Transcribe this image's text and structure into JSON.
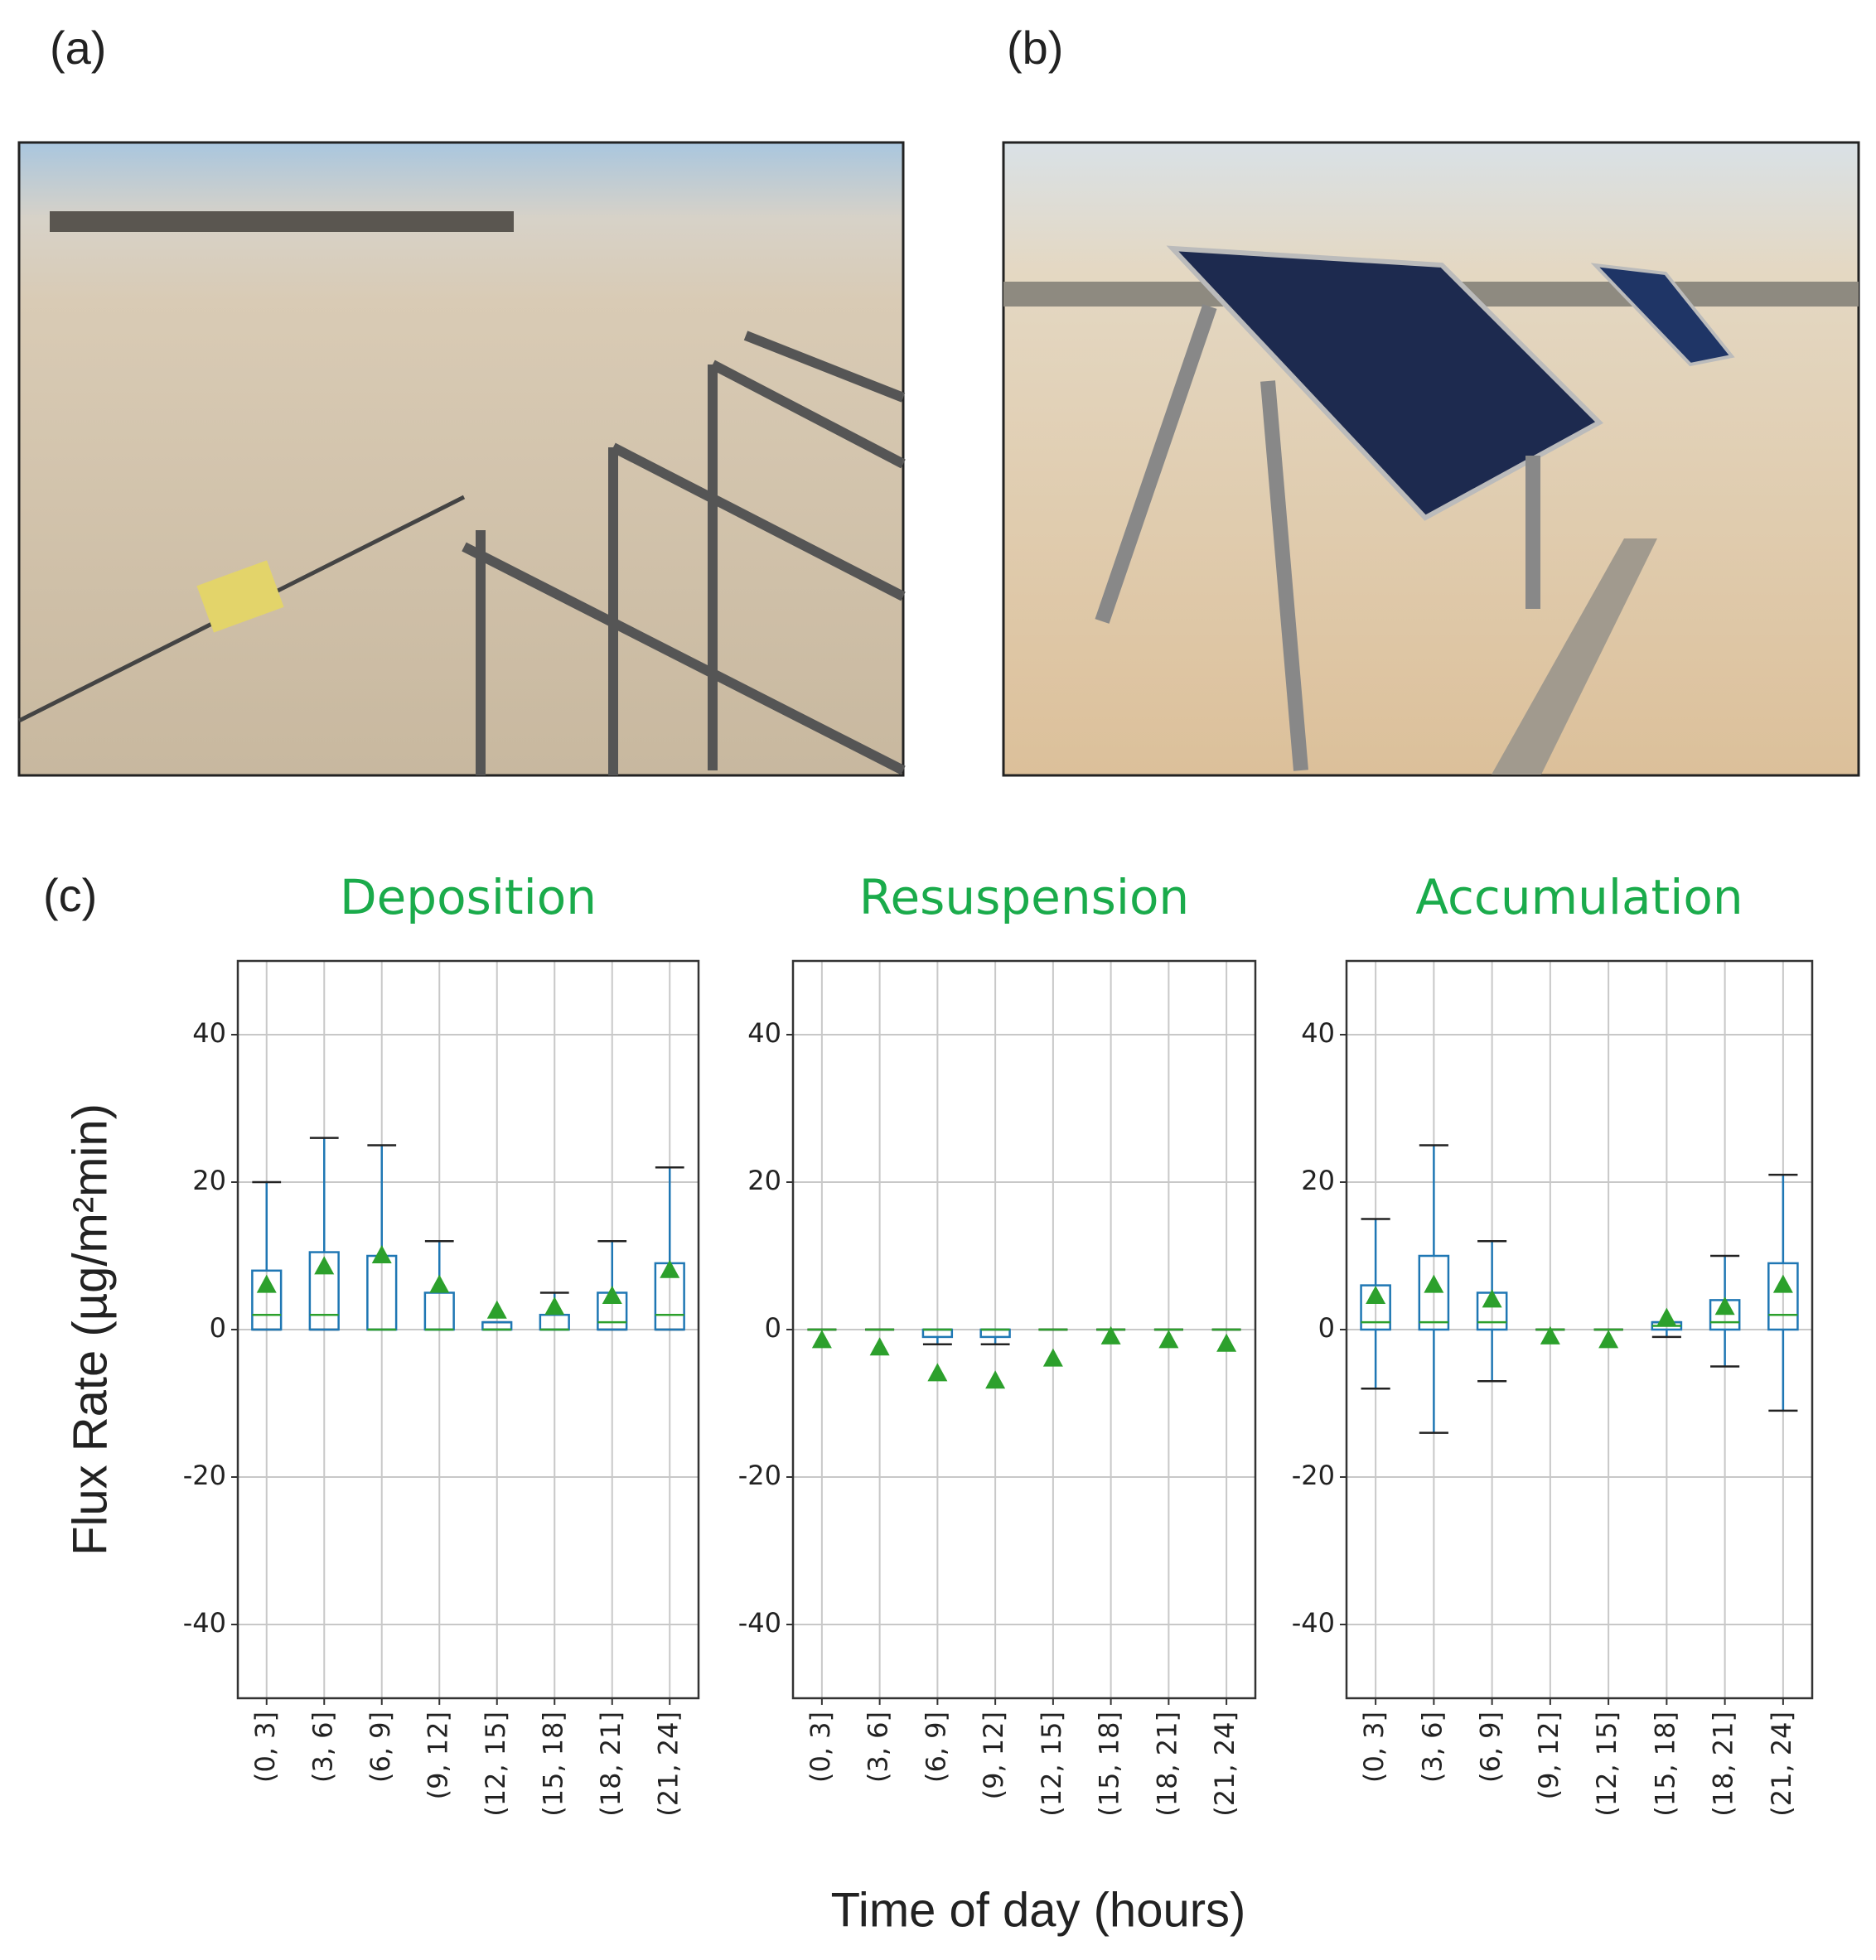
{
  "panel_labels": [
    "(a)",
    "(b)",
    "(c)"
  ],
  "y_label": "Flux Rate (µg/m²min)",
  "x_label": "Time of day (hours)",
  "chart_data": [
    {
      "type": "box",
      "title": "Deposition",
      "categories": [
        "(0, 3]",
        "(3, 6]",
        "(6, 9]",
        "(9, 12]",
        "(12, 15]",
        "(15, 18]",
        "(18, 21]",
        "(21, 24]"
      ],
      "whislo": [
        0,
        0,
        0,
        0,
        0,
        0,
        0,
        0
      ],
      "q1": [
        0,
        0,
        0,
        0,
        0,
        0,
        0,
        0
      ],
      "med": [
        2,
        2,
        0,
        0,
        0,
        0,
        1,
        2
      ],
      "q3": [
        8,
        10.5,
        10,
        5,
        1,
        2,
        5,
        9
      ],
      "whishi": [
        20,
        26,
        25,
        12,
        1,
        5,
        12,
        22
      ],
      "mean": [
        6,
        8.5,
        10,
        6,
        2.5,
        3,
        4.5,
        8
      ],
      "ylim": [
        -50,
        50
      ],
      "yticks": [
        -40,
        -20,
        0,
        20,
        40
      ],
      "grid": true,
      "box_color": "#1f77b4",
      "median_color": "#2ca02c",
      "mean_color": "#2ca02c"
    },
    {
      "type": "box",
      "title": "Resuspension",
      "categories": [
        "(0, 3]",
        "(3, 6]",
        "(6, 9]",
        "(9, 12]",
        "(12, 15]",
        "(15, 18]",
        "(18, 21]",
        "(21, 24]"
      ],
      "whislo": [
        0,
        0,
        -2,
        -2,
        0,
        0,
        0,
        0
      ],
      "q1": [
        0,
        0,
        -1,
        -1,
        0,
        0,
        0,
        0
      ],
      "med": [
        0,
        0,
        0,
        0,
        0,
        0,
        0,
        0
      ],
      "q3": [
        0,
        0,
        0,
        0,
        0,
        0,
        0,
        0
      ],
      "whishi": [
        0,
        0,
        0,
        0,
        0,
        0,
        0,
        0
      ],
      "mean": [
        -1.5,
        -2.5,
        -6,
        -7,
        -4,
        -1,
        -1.5,
        -2
      ],
      "ylim": [
        -50,
        50
      ],
      "yticks": [
        -40,
        -20,
        0,
        20,
        40
      ],
      "grid": true,
      "box_color": "#1f77b4",
      "median_color": "#2ca02c",
      "mean_color": "#2ca02c"
    },
    {
      "type": "box",
      "title": "Accumulation",
      "categories": [
        "(0, 3]",
        "(3, 6]",
        "(6, 9]",
        "(9, 12]",
        "(12, 15]",
        "(15, 18]",
        "(18, 21]",
        "(21, 24]"
      ],
      "whislo": [
        -8,
        -14,
        -7,
        0,
        0,
        -1,
        -5,
        -11
      ],
      "q1": [
        0,
        0,
        0,
        0,
        0,
        0,
        0,
        0
      ],
      "med": [
        1,
        1,
        1,
        0,
        0,
        0.5,
        1,
        2
      ],
      "q3": [
        6,
        10,
        5,
        0,
        0,
        1,
        4,
        9
      ],
      "whishi": [
        15,
        25,
        12,
        0,
        0,
        1,
        10,
        21
      ],
      "mean": [
        4.5,
        6,
        4,
        -1,
        -1.5,
        1.5,
        3,
        6
      ],
      "ylim": [
        -50,
        50
      ],
      "yticks": [
        -40,
        -20,
        0,
        20,
        40
      ],
      "grid": true,
      "box_color": "#1f77b4",
      "median_color": "#2ca02c",
      "mean_color": "#2ca02c"
    }
  ]
}
